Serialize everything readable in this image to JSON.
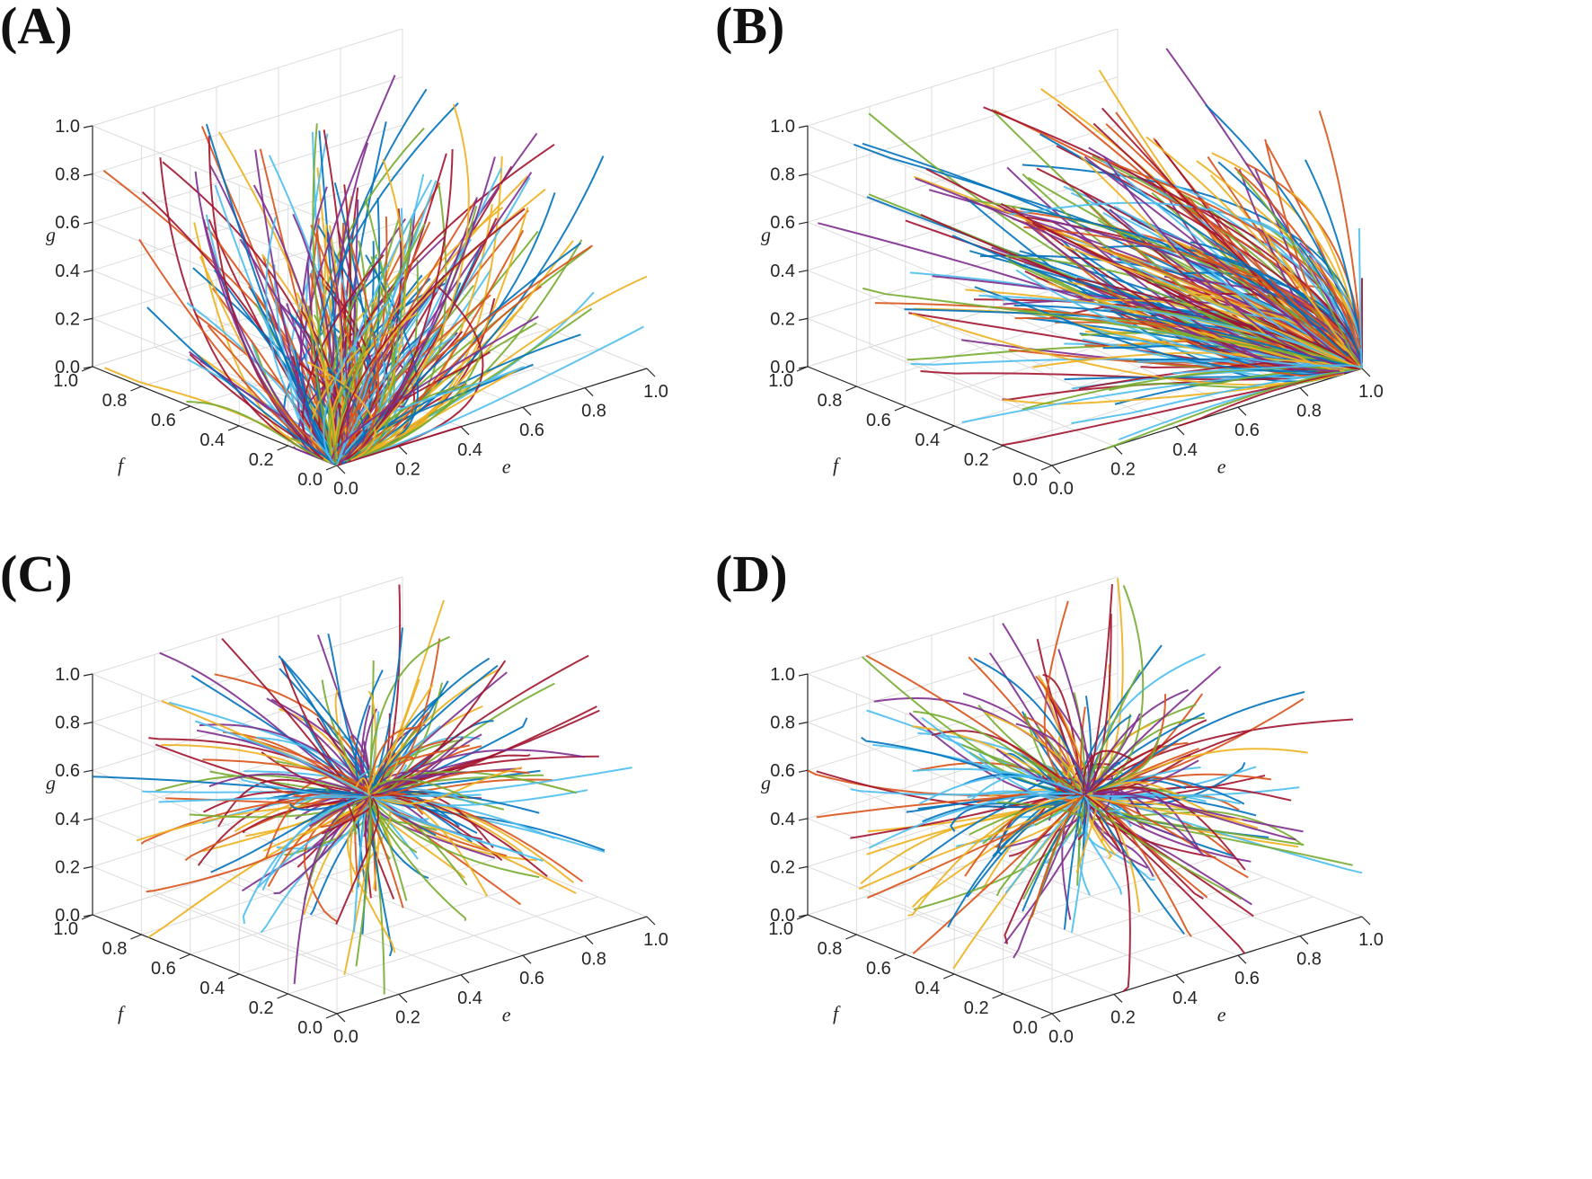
{
  "chart_data": [
    {
      "panel_label": "(A)",
      "type": "line",
      "projection": "3d",
      "axes": {
        "e": {
          "label": "e",
          "range": [
            0,
            1
          ],
          "ticks": [
            "0.0",
            "0.2",
            "0.4",
            "0.6",
            "0.8",
            "1.0"
          ]
        },
        "f": {
          "label": "f",
          "range": [
            0,
            1
          ],
          "ticks": [
            "0.0",
            "0.2",
            "0.4",
            "0.6",
            "0.8",
            "1.0"
          ]
        },
        "g": {
          "label": "g",
          "range": [
            0,
            1
          ],
          "ticks": [
            "0.0",
            "0.2",
            "0.4",
            "0.6",
            "0.8",
            "1.0"
          ]
        }
      },
      "grid": true,
      "trajectory_convergence_point": {
        "e": 0.0,
        "f": 0.0,
        "g": 0.0
      }
    },
    {
      "panel_label": "(B)",
      "type": "line",
      "projection": "3d",
      "axes": {
        "e": {
          "label": "e",
          "range": [
            0,
            1
          ],
          "ticks": [
            "0.0",
            "0.2",
            "0.4",
            "0.6",
            "0.8",
            "1.0"
          ]
        },
        "f": {
          "label": "f",
          "range": [
            0,
            1
          ],
          "ticks": [
            "0.0",
            "0.2",
            "0.4",
            "0.6",
            "0.8",
            "1.0"
          ]
        },
        "g": {
          "label": "g",
          "range": [
            0,
            1
          ],
          "ticks": [
            "0.0",
            "0.2",
            "0.4",
            "0.6",
            "0.8",
            "1.0"
          ]
        }
      },
      "grid": true,
      "trajectory_convergence_point": {
        "e": 1.0,
        "f": 0.0,
        "g": 0.0
      }
    },
    {
      "panel_label": "(C)",
      "type": "line",
      "projection": "3d",
      "axes": {
        "e": {
          "label": "e",
          "range": [
            0,
            1
          ],
          "ticks": [
            "0.0",
            "0.2",
            "0.4",
            "0.6",
            "0.8",
            "1.0"
          ]
        },
        "f": {
          "label": "f",
          "range": [
            0,
            1
          ],
          "ticks": [
            "0.0",
            "0.2",
            "0.4",
            "0.6",
            "0.8",
            "1.0"
          ]
        },
        "g": {
          "label": "g",
          "range": [
            0,
            1
          ],
          "ticks": [
            "0.0",
            "0.2",
            "0.4",
            "0.6",
            "0.8",
            "1.0"
          ]
        }
      },
      "grid": true,
      "trajectory_convergence_point": {
        "e": 0.5,
        "f": 0.5,
        "g": 0.5
      }
    },
    {
      "panel_label": "(D)",
      "type": "line",
      "projection": "3d",
      "axes": {
        "e": {
          "label": "e",
          "range": [
            0,
            1
          ],
          "ticks": [
            "0.0",
            "0.2",
            "0.4",
            "0.6",
            "0.8",
            "1.0"
          ]
        },
        "f": {
          "label": "f",
          "range": [
            0,
            1
          ],
          "ticks": [
            "0.0",
            "0.2",
            "0.4",
            "0.6",
            "0.8",
            "1.0"
          ]
        },
        "g": {
          "label": "g",
          "range": [
            0,
            1
          ],
          "ticks": [
            "0.0",
            "0.2",
            "0.4",
            "0.6",
            "0.8",
            "1.0"
          ]
        }
      },
      "grid": true,
      "trajectory_convergence_point": {
        "e": 0.5,
        "f": 0.5,
        "g": 0.5
      }
    }
  ],
  "series_colors": [
    "#0072BD",
    "#D95319",
    "#EDB120",
    "#7E2F8E",
    "#77AC30",
    "#4DBEEE",
    "#A2142F"
  ],
  "grid_color": "#dcdcdc",
  "axis_color": "#262626"
}
